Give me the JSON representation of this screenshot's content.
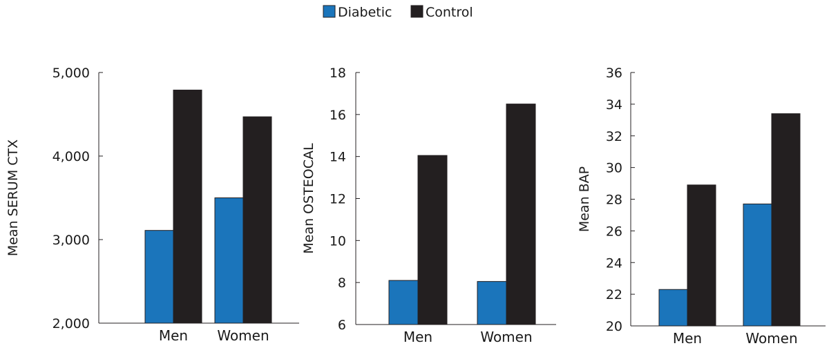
{
  "legend": [
    {
      "label": "Diabetic",
      "color": "#1b75bb"
    },
    {
      "label": "Control",
      "color": "#231f20"
    }
  ],
  "chart_data": [
    {
      "type": "bar",
      "categories": [
        "Men",
        "Women"
      ],
      "series": [
        {
          "name": "Diabetic",
          "values": [
            3110,
            3500
          ]
        },
        {
          "name": "Control",
          "values": [
            4790,
            4470
          ]
        }
      ],
      "ylabel": "Mean SERUM CTX",
      "ylim": [
        2000,
        5000
      ],
      "yticks": [
        2000,
        3000,
        4000,
        5000
      ],
      "ytick_labels": [
        "2,000",
        "3,000",
        "4,000",
        "5,000"
      ],
      "grid": false
    },
    {
      "type": "bar",
      "categories": [
        "Men",
        "Women"
      ],
      "series": [
        {
          "name": "Diabetic",
          "values": [
            8.1,
            8.05
          ]
        },
        {
          "name": "Control",
          "values": [
            14.05,
            16.5
          ]
        }
      ],
      "ylabel": "Mean OSTEOCAL",
      "ylim": [
        6,
        18
      ],
      "yticks": [
        6,
        8,
        10,
        12,
        14,
        16,
        18
      ],
      "ytick_labels": [
        "6",
        "8",
        "10",
        "12",
        "14",
        "16",
        "18"
      ],
      "grid": false
    },
    {
      "type": "bar",
      "categories": [
        "Men",
        "Women"
      ],
      "series": [
        {
          "name": "Diabetic",
          "values": [
            22.3,
            27.7
          ]
        },
        {
          "name": "Control",
          "values": [
            28.9,
            33.4
          ]
        }
      ],
      "ylabel": "Mean BAP",
      "ylim": [
        20,
        36
      ],
      "yticks": [
        20,
        22,
        24,
        26,
        28,
        30,
        32,
        34,
        36
      ],
      "ytick_labels": [
        "20",
        "22",
        "24",
        "26",
        "28",
        "30",
        "32",
        "34",
        "36"
      ],
      "grid": false
    }
  ]
}
